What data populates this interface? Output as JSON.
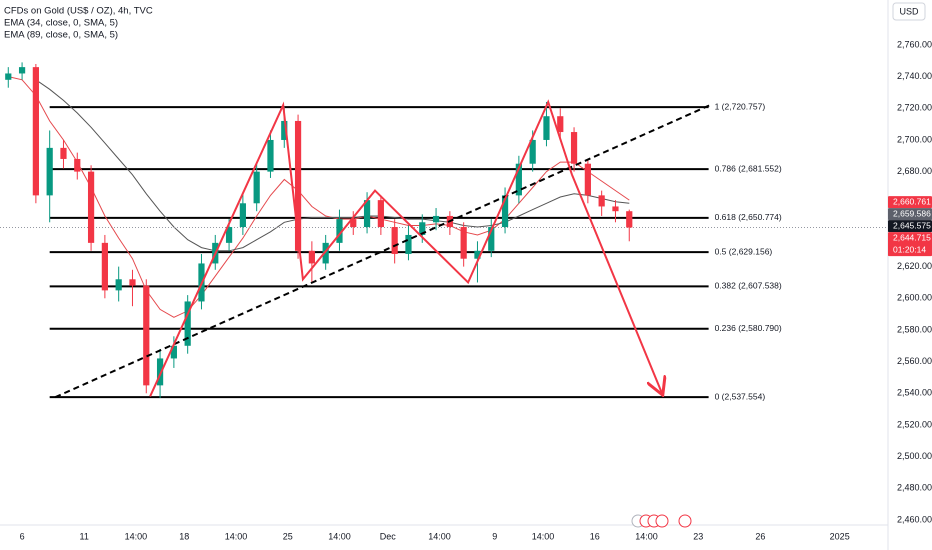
{
  "chart_data": {
    "type": "candlestick",
    "title": "CFDs on Gold (US$ / OZ), 4h, TVC",
    "currency": "USD",
    "up_color": "#089981",
    "down_color": "#f23645",
    "xlim": [
      -6.4,
      251
    ],
    "ylim": [
      2456.8,
      2788.4
    ],
    "xticks": [
      {
        "value": 0,
        "label": "6"
      },
      {
        "value": 18,
        "label": "11"
      },
      {
        "value": 33,
        "label": "14:00"
      },
      {
        "value": 47,
        "label": "18"
      },
      {
        "value": 62,
        "label": "14:00"
      },
      {
        "value": 77,
        "label": "25"
      },
      {
        "value": 92,
        "label": "14:00"
      },
      {
        "value": 106,
        "label": "Dec"
      },
      {
        "value": 121,
        "label": "14:00"
      },
      {
        "value": 137,
        "label": "9"
      },
      {
        "value": 151,
        "label": "14:00"
      },
      {
        "value": 166,
        "label": "16"
      },
      {
        "value": 181,
        "label": "14:00"
      },
      {
        "value": 196,
        "label": "23"
      },
      {
        "value": 214,
        "label": "26"
      },
      {
        "value": 237,
        "label": "2025"
      }
    ],
    "yticks": [
      {
        "value": 2760,
        "label": "2,760.000"
      },
      {
        "value": 2740,
        "label": "2,740.000"
      },
      {
        "value": 2720,
        "label": "2,720.000"
      },
      {
        "value": 2700,
        "label": "2,700.000"
      },
      {
        "value": 2680,
        "label": "2,680.000"
      },
      {
        "value": 2660,
        "label": "2,660.000"
      },
      {
        "value": 2620,
        "label": "2,620.000"
      },
      {
        "value": 2600,
        "label": "2,600.000"
      },
      {
        "value": 2580,
        "label": "2,580.000"
      },
      {
        "value": 2560,
        "label": "2,560.000"
      },
      {
        "value": 2540,
        "label": "2,540.000"
      },
      {
        "value": 2520,
        "label": "2,520.000"
      },
      {
        "value": 2500,
        "label": "2,500.000"
      },
      {
        "value": 2480,
        "label": "2,480.000"
      },
      {
        "value": 2460,
        "label": "2,460.000"
      }
    ],
    "x": [
      -4,
      0,
      4,
      8,
      12,
      16,
      20,
      24,
      28,
      32,
      36,
      40,
      44,
      48,
      52,
      56,
      60,
      64,
      68,
      72,
      76,
      80,
      84,
      88,
      92,
      96,
      100,
      104,
      108,
      112,
      116,
      120,
      124,
      128,
      132,
      136,
      140,
      144,
      148,
      152,
      156,
      160,
      164,
      168,
      172,
      176
    ],
    "open": [
      2738,
      2742,
      2746,
      2665,
      2695,
      2688,
      2680,
      2635,
      2605,
      2612,
      2608,
      2545,
      2562,
      2570,
      2598,
      2622,
      2635,
      2645,
      2660,
      2680,
      2700,
      2712,
      2630,
      2622,
      2635,
      2650,
      2645,
      2662,
      2645,
      2628,
      2640,
      2648,
      2652,
      2645,
      2625,
      2630,
      2645,
      2665,
      2685,
      2700,
      2715,
      2705,
      2685,
      2665,
      2658,
      2655
    ],
    "high": [
      2746,
      2749,
      2748,
      2706,
      2700,
      2692,
      2684,
      2640,
      2620,
      2618,
      2612,
      2568,
      2576,
      2602,
      2628,
      2640,
      2650,
      2666,
      2686,
      2706,
      2721,
      2716,
      2636,
      2640,
      2656,
      2655,
      2667,
      2665,
      2650,
      2646,
      2653,
      2657,
      2655,
      2648,
      2636,
      2650,
      2670,
      2690,
      2706,
      2724,
      2720,
      2708,
      2688,
      2668,
      2662,
      2656
    ],
    "low": [
      2733,
      2738,
      2660,
      2648,
      2682,
      2675,
      2630,
      2600,
      2598,
      2595,
      2540,
      2537,
      2556,
      2565,
      2593,
      2618,
      2630,
      2640,
      2655,
      2676,
      2695,
      2625,
      2610,
      2618,
      2630,
      2640,
      2641,
      2640,
      2622,
      2624,
      2635,
      2643,
      2640,
      2620,
      2610,
      2626,
      2641,
      2660,
      2680,
      2696,
      2700,
      2680,
      2660,
      2652,
      2648,
      2636
    ],
    "close": [
      2742,
      2746,
      2665,
      2695,
      2688,
      2680,
      2635,
      2605,
      2612,
      2608,
      2545,
      2562,
      2570,
      2598,
      2622,
      2635,
      2645,
      2660,
      2680,
      2700,
      2712,
      2630,
      2622,
      2635,
      2650,
      2645,
      2662,
      2645,
      2628,
      2640,
      2648,
      2652,
      2645,
      2625,
      2630,
      2645,
      2665,
      2685,
      2700,
      2715,
      2705,
      2685,
      2665,
      2658,
      2655,
      2644.7
    ],
    "series": [
      {
        "name": "EMA (34, close, 0, SMA, 5)",
        "color": "#e5494d",
        "values": [
          2740,
          2738,
          2728,
          2712,
          2700,
          2686,
          2670,
          2652,
          2638,
          2625,
          2605,
          2593,
          2588,
          2592,
          2602,
          2614,
          2626,
          2638,
          2652,
          2665,
          2675,
          2668,
          2658,
          2652,
          2650,
          2650,
          2652,
          2650,
          2648,
          2646,
          2646,
          2647,
          2646,
          2642,
          2640,
          2643,
          2650,
          2660,
          2670,
          2680,
          2686,
          2686,
          2680,
          2674,
          2668,
          2662
        ]
      },
      {
        "name": "EMA (89, close, 0, SMA, 5)",
        "color": "#555555",
        "values": [
          null,
          null,
          2738,
          2732,
          2725,
          2717,
          2708,
          2698,
          2688,
          2678,
          2666,
          2655,
          2645,
          2637,
          2632,
          2630,
          2630,
          2632,
          2637,
          2642,
          2648,
          2650,
          2651,
          2651,
          2651,
          2651,
          2652,
          2652,
          2651,
          2650,
          2650,
          2649,
          2648,
          2646,
          2645,
          2646,
          2648,
          2652,
          2656,
          2660,
          2664,
          2666,
          2665,
          2663,
          2661,
          2660
        ]
      }
    ],
    "fib": {
      "x": [
        8,
        199
      ],
      "color": "#000000",
      "levels": [
        {
          "value": 2720.757,
          "label": "1 (2,720.757)"
        },
        {
          "value": 2681.552,
          "label": "0.786 (2,681.552)"
        },
        {
          "value": 2650.774,
          "label": "0.618 (2,650.774)"
        },
        {
          "value": 2629.156,
          "label": "0.5 (2,629.156)"
        },
        {
          "value": 2607.538,
          "label": "0.382 (2,607.538)"
        },
        {
          "value": 2580.79,
          "label": "0.236 (2,580.790)"
        },
        {
          "value": 2537.554,
          "label": "0 (2,537.554)"
        }
      ]
    },
    "annotations": [
      {
        "kind": "trendline",
        "color": "#000000",
        "dashed": true,
        "x": [
          9.6,
          199.4
        ],
        "y": [
          2537.5,
          2722
        ]
      },
      {
        "kind": "zigzag",
        "color": "#f23645",
        "dashed": false,
        "x": [
          37.1,
          75.7,
          81.4,
          102.3,
          129.3,
          152.5,
          159.4
        ],
        "y": [
          2538,
          2722,
          2612,
          2668,
          2610,
          2724,
          2678
        ]
      },
      {
        "kind": "arrow",
        "color": "#f23645",
        "dashed": false,
        "x": [
          159.4,
          185.5
        ],
        "y": [
          2678,
          2540
        ]
      }
    ],
    "price_tags": [
      {
        "value": 2660.761,
        "label": "2,660.761",
        "color": "#f23645"
      },
      {
        "value": 2659.586,
        "label": "2,659.586",
        "color": "#5d606b"
      },
      {
        "value": 2645.575,
        "label": "2,645.575",
        "color": "#131722"
      },
      {
        "value": 2644.715,
        "label": "2,644.715",
        "color": "#f23645"
      }
    ],
    "countdown": "01:20:14"
  }
}
